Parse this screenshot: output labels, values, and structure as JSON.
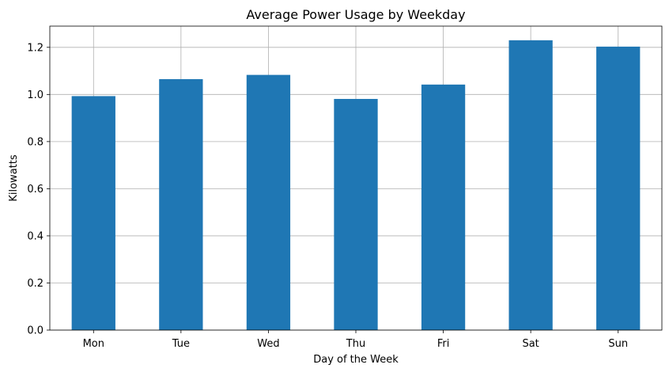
{
  "chart_data": {
    "type": "bar",
    "title": "Average Power Usage by Weekday",
    "xlabel": "Day of the Week",
    "ylabel": "Kilowatts",
    "categories": [
      "Mon",
      "Tue",
      "Wed",
      "Thu",
      "Fri",
      "Sat",
      "Sun"
    ],
    "values": [
      0.993,
      1.065,
      1.083,
      0.981,
      1.042,
      1.23,
      1.203
    ],
    "ylim": [
      0,
      1.29
    ],
    "yticks": [
      0.0,
      0.2,
      0.4,
      0.6,
      0.8,
      1.0,
      1.2
    ],
    "ytick_labels": [
      "0.0",
      "0.2",
      "0.4",
      "0.6",
      "0.8",
      "1.0",
      "1.2"
    ],
    "grid": true,
    "bar_color": "#1f77b4",
    "grid_color": "#b0b0b0"
  }
}
